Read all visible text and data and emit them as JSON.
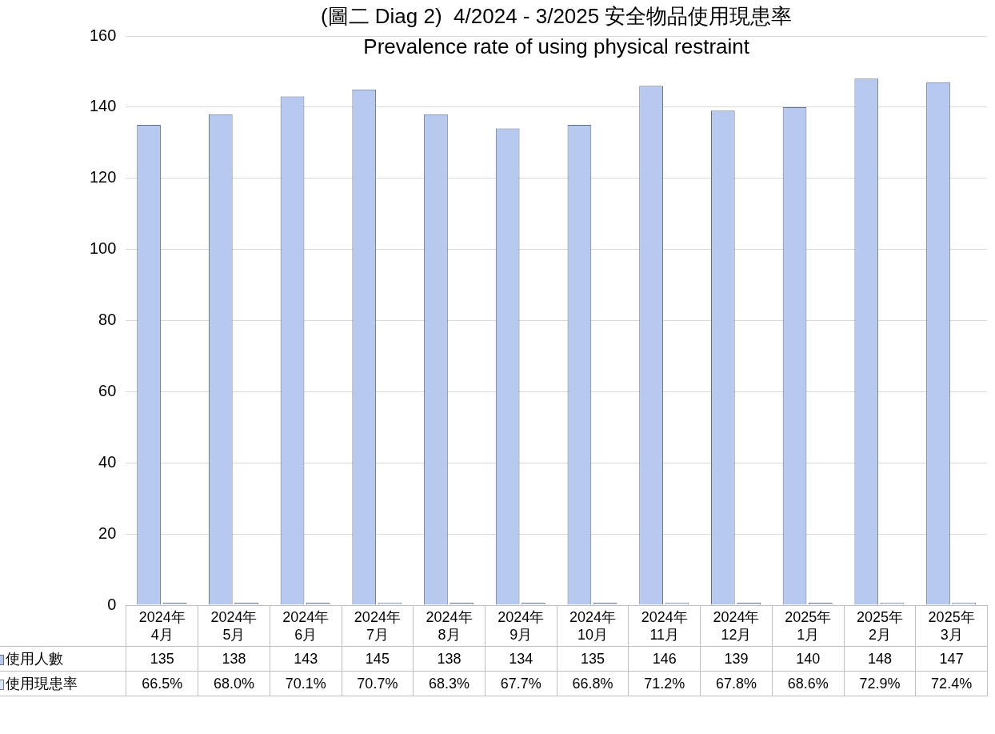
{
  "chart_data": {
    "type": "bar",
    "title": "(圖二 Diag 2)  4/2024 - 3/2025 安全物品使用現患率",
    "subtitle": "Prevalence rate of using physical restraint",
    "categories": [
      "2024年4月",
      "2024年5月",
      "2024年6月",
      "2024年7月",
      "2024年8月",
      "2024年9月",
      "2024年10月",
      "2024年11月",
      "2024年12月",
      "2025年1月",
      "2025年2月",
      "2025年3月"
    ],
    "series": [
      {
        "name": "使用人數",
        "color": "#b7c9ef",
        "values": [
          135,
          138,
          143,
          145,
          138,
          134,
          135,
          146,
          139,
          140,
          148,
          147
        ],
        "value_labels": [
          "135",
          "138",
          "143",
          "145",
          "138",
          "134",
          "135",
          "146",
          "139",
          "140",
          "148",
          "147"
        ]
      },
      {
        "name": "使用現患率",
        "color": "#dbe5f7",
        "values": [
          0.665,
          0.68,
          0.701,
          0.707,
          0.683,
          0.677,
          0.668,
          0.712,
          0.678,
          0.686,
          0.729,
          0.724
        ],
        "value_labels": [
          "66.5%",
          "68.0%",
          "70.1%",
          "70.7%",
          "68.3%",
          "67.7%",
          "66.8%",
          "71.2%",
          "67.8%",
          "68.6%",
          "72.9%",
          "72.4%"
        ]
      }
    ],
    "ylim": [
      0,
      160
    ],
    "yticks": [
      0,
      20,
      40,
      60,
      80,
      100,
      120,
      140,
      160
    ],
    "grid": "y",
    "legend": "bottom"
  }
}
